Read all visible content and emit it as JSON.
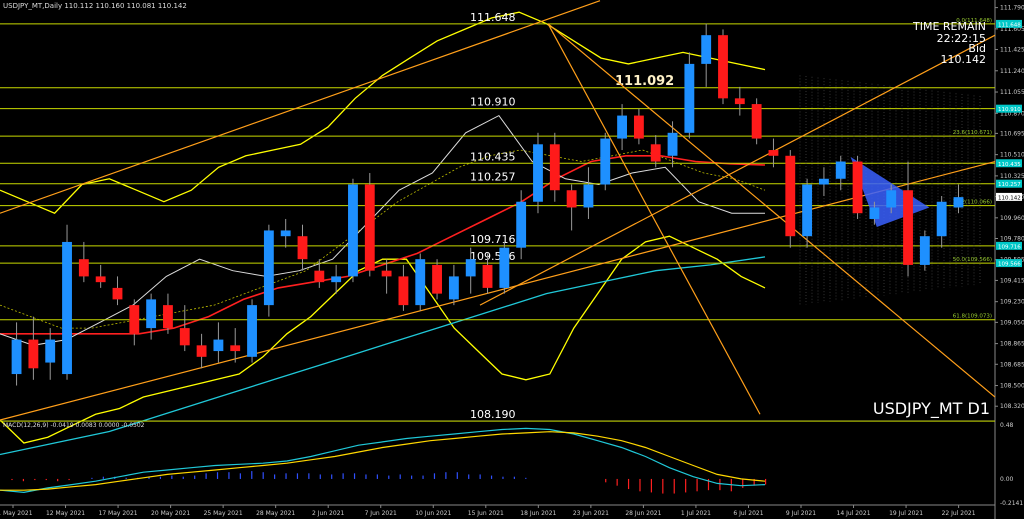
{
  "header": {
    "symbol_info": "USDJPY_MT,Daily  110.112 110.160 110.081 110.142",
    "macd_info": "MACD(12,26,9) -0.0419 0.0083 0.0000 -0.0502"
  },
  "watermark": "USDJPY_MT D1",
  "time_panel": {
    "title": "TIME REMAIN",
    "time": "22:22:15",
    "bid_label": "Bid",
    "bid_value": "110.142"
  },
  "colors": {
    "background": "#000000",
    "bull": "#1e90ff",
    "bear": "#ff1a1a",
    "hline": "#c8d900",
    "fib_text": "#9acd32",
    "trend_orange": "#ff9f1a",
    "bollinger": "#ffff00",
    "ma_red": "#ff2020",
    "ma_white": "#dddddd",
    "ma_cyan": "#20c8d8",
    "macd_line": "#20c8d8",
    "signal_line": "#ffd700",
    "hist_pos": "#3050ff",
    "hist_neg": "#ff2020",
    "price_tag": "#00c8c8"
  },
  "chart_data": {
    "type": "candlestick",
    "ylim": [
      108.2,
      111.83
    ],
    "price_ticks": [
      "111.790",
      "111.605",
      "111.425",
      "111.240",
      "111.055",
      "110.870",
      "110.695",
      "110.510",
      "110.325",
      "110.145",
      "109.960",
      "109.780",
      "109.595",
      "109.415",
      "109.230",
      "109.050",
      "108.865",
      "108.685",
      "108.500",
      "108.320"
    ],
    "date_ticks": [
      {
        "i": 0,
        "label": "11 May 2021"
      },
      {
        "i": 4,
        "label": "12 May 2021"
      },
      {
        "i": 8,
        "label": "17 May 2021"
      },
      {
        "i": 12,
        "label": "20 May 2021"
      },
      {
        "i": 16,
        "label": "25 May 2021"
      },
      {
        "i": 20,
        "label": "28 May 2021"
      },
      {
        "i": 24,
        "label": "2 Jun 2021"
      },
      {
        "i": 28,
        "label": "7 Jun 2021"
      },
      {
        "i": 32,
        "label": "10 Jun 2021"
      },
      {
        "i": 36,
        "label": "15 Jun 2021"
      },
      {
        "i": 40,
        "label": "18 Jun 2021"
      },
      {
        "i": 44,
        "label": "23 Jun 2021"
      },
      {
        "i": 48,
        "label": "28 Jun 2021"
      },
      {
        "i": 52,
        "label": "1 Jul 2021"
      },
      {
        "i": 56,
        "label": "6 Jul 2021"
      },
      {
        "i": 60,
        "label": "9 Jul 2021"
      },
      {
        "i": 64,
        "label": "14 Jul 2021"
      },
      {
        "i": 68,
        "label": "19 Jul 2021"
      },
      {
        "i": 72,
        "label": "22 Jul 2021"
      }
    ],
    "candles": [
      {
        "o": 108.6,
        "h": 109.05,
        "l": 108.5,
        "c": 108.9
      },
      {
        "o": 108.9,
        "h": 109.1,
        "l": 108.55,
        "c": 108.65
      },
      {
        "o": 108.7,
        "h": 109.0,
        "l": 108.55,
        "c": 108.9
      },
      {
        "o": 108.6,
        "h": 109.9,
        "l": 108.55,
        "c": 109.75
      },
      {
        "o": 109.6,
        "h": 109.75,
        "l": 109.4,
        "c": 109.45
      },
      {
        "o": 109.45,
        "h": 109.55,
        "l": 109.35,
        "c": 109.4
      },
      {
        "o": 109.35,
        "h": 109.45,
        "l": 109.2,
        "c": 109.25
      },
      {
        "o": 109.2,
        "h": 109.25,
        "l": 108.85,
        "c": 108.95
      },
      {
        "o": 109.0,
        "h": 109.3,
        "l": 108.9,
        "c": 109.25
      },
      {
        "o": 109.2,
        "h": 109.3,
        "l": 108.95,
        "c": 109.0
      },
      {
        "o": 109.0,
        "h": 109.2,
        "l": 108.8,
        "c": 108.85
      },
      {
        "o": 108.85,
        "h": 108.95,
        "l": 108.65,
        "c": 108.75
      },
      {
        "o": 108.8,
        "h": 109.05,
        "l": 108.7,
        "c": 108.9
      },
      {
        "o": 108.85,
        "h": 109.0,
        "l": 108.7,
        "c": 108.8
      },
      {
        "o": 108.75,
        "h": 109.25,
        "l": 108.7,
        "c": 109.2
      },
      {
        "o": 109.2,
        "h": 109.9,
        "l": 109.1,
        "c": 109.85
      },
      {
        "o": 109.8,
        "h": 109.95,
        "l": 109.7,
        "c": 109.85
      },
      {
        "o": 109.8,
        "h": 109.9,
        "l": 109.5,
        "c": 109.6
      },
      {
        "o": 109.5,
        "h": 109.6,
        "l": 109.35,
        "c": 109.4
      },
      {
        "o": 109.4,
        "h": 109.55,
        "l": 109.3,
        "c": 109.45
      },
      {
        "o": 109.45,
        "h": 110.3,
        "l": 109.4,
        "c": 110.25
      },
      {
        "o": 110.25,
        "h": 110.35,
        "l": 109.45,
        "c": 109.5
      },
      {
        "o": 109.5,
        "h": 109.6,
        "l": 109.3,
        "c": 109.45
      },
      {
        "o": 109.45,
        "h": 109.55,
        "l": 109.15,
        "c": 109.2
      },
      {
        "o": 109.2,
        "h": 109.65,
        "l": 109.15,
        "c": 109.6
      },
      {
        "o": 109.55,
        "h": 109.6,
        "l": 109.25,
        "c": 109.3
      },
      {
        "o": 109.25,
        "h": 109.55,
        "l": 109.2,
        "c": 109.45
      },
      {
        "o": 109.45,
        "h": 109.7,
        "l": 109.3,
        "c": 109.6
      },
      {
        "o": 109.55,
        "h": 109.65,
        "l": 109.3,
        "c": 109.35
      },
      {
        "o": 109.35,
        "h": 109.75,
        "l": 109.3,
        "c": 109.7
      },
      {
        "o": 109.7,
        "h": 110.2,
        "l": 109.6,
        "c": 110.1
      },
      {
        "o": 110.1,
        "h": 110.7,
        "l": 110.0,
        "c": 110.6
      },
      {
        "o": 110.6,
        "h": 110.7,
        "l": 110.1,
        "c": 110.2
      },
      {
        "o": 110.2,
        "h": 110.25,
        "l": 109.85,
        "c": 110.05
      },
      {
        "o": 110.05,
        "h": 110.4,
        "l": 109.95,
        "c": 110.25
      },
      {
        "o": 110.25,
        "h": 110.7,
        "l": 110.2,
        "c": 110.65
      },
      {
        "o": 110.65,
        "h": 110.95,
        "l": 110.55,
        "c": 110.85
      },
      {
        "o": 110.85,
        "h": 110.91,
        "l": 110.6,
        "c": 110.65
      },
      {
        "o": 110.6,
        "h": 110.68,
        "l": 110.4,
        "c": 110.45
      },
      {
        "o": 110.5,
        "h": 110.8,
        "l": 110.4,
        "c": 110.7
      },
      {
        "o": 110.7,
        "h": 111.4,
        "l": 110.65,
        "c": 111.3
      },
      {
        "o": 111.3,
        "h": 111.65,
        "l": 111.1,
        "c": 111.55
      },
      {
        "o": 111.55,
        "h": 111.6,
        "l": 110.95,
        "c": 111.0
      },
      {
        "o": 111.0,
        "h": 111.1,
        "l": 110.85,
        "c": 110.95
      },
      {
        "o": 110.95,
        "h": 111.0,
        "l": 110.6,
        "c": 110.65
      },
      {
        "o": 110.55,
        "h": 110.65,
        "l": 110.4,
        "c": 110.5
      },
      {
        "o": 110.5,
        "h": 110.55,
        "l": 109.7,
        "c": 109.8
      },
      {
        "o": 109.8,
        "h": 110.3,
        "l": 109.7,
        "c": 110.25
      },
      {
        "o": 110.25,
        "h": 110.4,
        "l": 110.15,
        "c": 110.3
      },
      {
        "o": 110.3,
        "h": 110.5,
        "l": 110.2,
        "c": 110.45
      },
      {
        "o": 110.45,
        "h": 110.5,
        "l": 109.95,
        "c": 110.0
      },
      {
        "o": 109.95,
        "h": 110.1,
        "l": 109.9,
        "c": 110.05
      },
      {
        "o": 110.05,
        "h": 110.25,
        "l": 110.0,
        "c": 110.2
      },
      {
        "o": 110.2,
        "h": 110.45,
        "l": 109.45,
        "c": 109.55
      },
      {
        "o": 109.55,
        "h": 109.85,
        "l": 109.5,
        "c": 109.8
      },
      {
        "o": 109.8,
        "h": 110.15,
        "l": 109.7,
        "c": 110.1
      },
      {
        "o": 110.05,
        "h": 110.25,
        "l": 110.0,
        "c": 110.14
      }
    ],
    "indicators": {
      "bollinger_upper": [
        110.2,
        110.1,
        110.0,
        110.25,
        110.3,
        110.2,
        110.1,
        110.2,
        110.4,
        110.5,
        110.55,
        110.6,
        110.75,
        111.0,
        111.2,
        111.35,
        111.5,
        111.6,
        111.7,
        111.75,
        111.65,
        111.5,
        111.35,
        111.3,
        111.35,
        111.4,
        111.35,
        111.3,
        111.25
      ],
      "bollinger_mid": [
        109.2,
        109.1,
        109.0,
        109.0,
        109.05,
        109.1,
        109.15,
        109.2,
        109.3,
        109.4,
        109.5,
        109.7,
        109.9,
        110.1,
        110.25,
        110.4,
        110.5,
        110.55,
        110.5,
        110.45,
        110.5,
        110.55,
        110.45,
        110.35,
        110.3,
        110.2
      ],
      "bollinger_lower": [
        108.2,
        108.0,
        108.05,
        108.15,
        108.25,
        108.3,
        108.4,
        108.45,
        108.5,
        108.55,
        108.6,
        108.75,
        108.95,
        109.1,
        109.3,
        109.5,
        109.6,
        109.6,
        109.3,
        109.0,
        108.8,
        108.6,
        108.55,
        108.6,
        109.0,
        109.3,
        109.6,
        109.75,
        109.8,
        109.7,
        109.6,
        109.45,
        109.35
      ],
      "ma_red": [
        108.95,
        108.95,
        108.95,
        108.95,
        108.95,
        109.0,
        109.1,
        109.25,
        109.35,
        109.4,
        109.45,
        109.55,
        109.65,
        109.8,
        109.95,
        110.1,
        110.3,
        110.45,
        110.5,
        110.5,
        110.45,
        110.43,
        110.42
      ],
      "ma_white": [
        108.95,
        108.85,
        108.9,
        109.05,
        109.2,
        109.45,
        109.6,
        109.5,
        109.45,
        109.5,
        109.6,
        109.9,
        110.2,
        110.35,
        110.7,
        110.85,
        110.45,
        110.3,
        110.25,
        110.35,
        110.4,
        110.1,
        110.0,
        110.0
      ],
      "ma_cyan": [
        107.9,
        108.0,
        108.1,
        108.25,
        108.4,
        108.55,
        108.7,
        108.85,
        109.0,
        109.15,
        109.3,
        109.4,
        109.5,
        109.55,
        109.62
      ]
    },
    "levels": [
      {
        "price": 111.648,
        "label": "111.648",
        "fib": "0.0(111.648)"
      },
      {
        "price": 111.092,
        "label": "111.092",
        "fib": ""
      },
      {
        "price": 110.91,
        "label": "110.910",
        "fib": ""
      },
      {
        "price": 110.671,
        "label": "",
        "fib": "23.6(110.671)"
      },
      {
        "price": 110.435,
        "label": "110.435",
        "fib": ""
      },
      {
        "price": 110.257,
        "label": "110.257",
        "fib": ""
      },
      {
        "price": 110.066,
        "label": "",
        "fib": "38.2(110.066)"
      },
      {
        "price": 109.716,
        "label": "109.716",
        "fib": ""
      },
      {
        "price": 109.566,
        "label": "109.566",
        "fib": "50.0(109.566)"
      },
      {
        "price": 109.073,
        "label": "",
        "fib": "61.8(109.073)"
      },
      {
        "price": 108.19,
        "label": "108.190",
        "fib": ""
      }
    ],
    "price_tags": [
      {
        "price": 111.648,
        "label": "111.648"
      },
      {
        "price": 110.91,
        "label": "110.910"
      },
      {
        "price": 110.435,
        "label": "110.435"
      },
      {
        "price": 110.257,
        "label": "110.257"
      },
      {
        "price": 110.142,
        "label": "110.142"
      },
      {
        "price": 109.716,
        "label": "109.716"
      },
      {
        "price": 109.566,
        "label": "109.566"
      }
    ],
    "macd": {
      "ylim": [
        -0.2141,
        0.48
      ],
      "ticks": [
        "0.48",
        "0.00",
        "-0.2141"
      ],
      "macd_line": [
        -0.1,
        -0.12,
        -0.08,
        -0.05,
        -0.02,
        0.02,
        0.06,
        0.08,
        0.1,
        0.12,
        0.13,
        0.14,
        0.16,
        0.2,
        0.25,
        0.3,
        0.33,
        0.36,
        0.38,
        0.4,
        0.42,
        0.44,
        0.45,
        0.44,
        0.4,
        0.34,
        0.28,
        0.2,
        0.1,
        0.02,
        -0.04,
        -0.06,
        -0.05
      ],
      "signal_line": [
        -0.1,
        -0.1,
        -0.09,
        -0.07,
        -0.05,
        -0.02,
        0.01,
        0.04,
        0.06,
        0.08,
        0.1,
        0.12,
        0.14,
        0.17,
        0.2,
        0.24,
        0.28,
        0.31,
        0.34,
        0.36,
        0.38,
        0.4,
        0.41,
        0.42,
        0.41,
        0.38,
        0.34,
        0.28,
        0.2,
        0.12,
        0.04,
        0.0,
        -0.02
      ],
      "histogram": [
        -0.01,
        -0.02,
        -0.01,
        -0.01,
        -0.02,
        -0.01,
        0.0,
        0.01,
        0.02,
        0.02,
        0.01,
        0.01,
        0.02,
        0.02,
        0.03,
        0.02,
        0.03,
        0.05,
        0.06,
        0.06,
        0.05,
        0.07,
        0.06,
        0.04,
        0.05,
        0.05,
        0.05,
        0.04,
        0.04,
        0.05,
        0.05,
        0.04,
        0.04,
        0.03,
        0.04,
        0.03,
        0.03,
        0.05,
        0.06,
        0.06,
        0.04,
        0.04,
        0.03,
        0.02,
        0.02,
        0.01,
        0.0,
        0.0,
        0.0,
        0.0,
        0.0,
        0.0,
        -0.03,
        -0.06,
        -0.09,
        -0.11,
        -0.12,
        -0.13,
        -0.13,
        -0.12,
        -0.11,
        -0.1,
        -0.1,
        -0.11,
        -0.08,
        -0.06,
        -0.05
      ]
    }
  }
}
